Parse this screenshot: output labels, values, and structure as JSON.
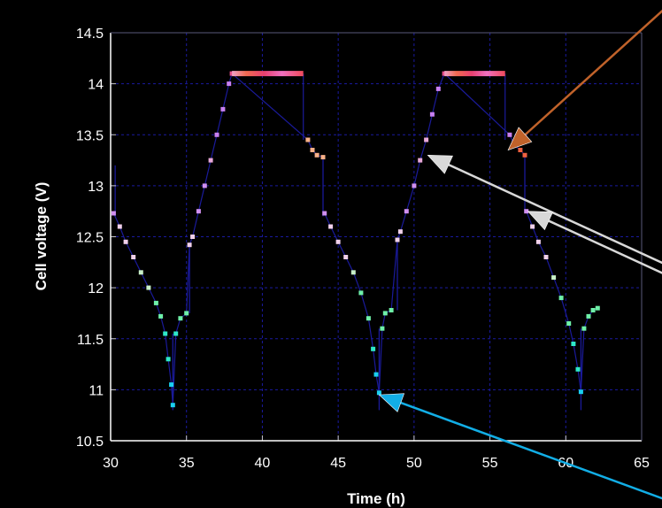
{
  "chart_data": {
    "type": "scatter",
    "xlabel": "Time (h)",
    "ylabel": "Cell voltage (V)",
    "xlim": [
      30,
      65
    ],
    "ylim": [
      10.5,
      14.5
    ],
    "x_ticks": [
      "30",
      "35",
      "40",
      "45",
      "50",
      "55",
      "60",
      "65"
    ],
    "y_ticks": [
      "10.5",
      "11",
      "11.5",
      "12",
      "12.5",
      "13",
      "13.5",
      "14",
      "14.5"
    ],
    "grid": true,
    "background": "#000000",
    "grid_color": "#1a1aa0",
    "trace_color": "#1a1a9a",
    "series": [
      {
        "segment": "cycle-1",
        "x": [
          30.2,
          30.6,
          31.0,
          31.5,
          32.0,
          32.5,
          33.0,
          33.3,
          33.6,
          33.8,
          34.0,
          34.1,
          34.3,
          34.6,
          35.0,
          35.2,
          35.4,
          35.8,
          36.2,
          36.6,
          37.0,
          37.4,
          37.8,
          38.0,
          43.0,
          43.3,
          43.6,
          44.0
        ],
        "y": [
          12.73,
          12.6,
          12.45,
          12.3,
          12.15,
          12.0,
          11.85,
          11.72,
          11.55,
          11.3,
          11.05,
          10.85,
          11.55,
          11.7,
          11.75,
          12.42,
          12.5,
          12.75,
          13.0,
          13.25,
          13.5,
          13.75,
          14.0,
          14.1,
          13.45,
          13.35,
          13.3,
          13.28
        ]
      },
      {
        "segment": "cycle-2",
        "x": [
          44.1,
          44.5,
          45.0,
          45.5,
          46.0,
          46.5,
          47.0,
          47.3,
          47.5,
          47.7,
          47.9,
          48.1,
          48.5,
          48.9,
          49.1,
          49.5,
          50.0,
          50.4,
          50.8,
          51.2,
          51.6,
          52.0,
          56.3,
          56.6,
          57.0,
          57.3
        ],
        "y": [
          12.73,
          12.6,
          12.45,
          12.3,
          12.15,
          11.95,
          11.7,
          11.4,
          11.15,
          10.97,
          11.6,
          11.75,
          11.78,
          12.47,
          12.55,
          12.75,
          13.0,
          13.25,
          13.45,
          13.7,
          13.95,
          14.1,
          13.5,
          13.4,
          13.35,
          13.3
        ]
      },
      {
        "segment": "cycle-3",
        "x": [
          57.4,
          57.8,
          58.2,
          58.7,
          59.2,
          59.7,
          60.2,
          60.5,
          60.8,
          61.0,
          61.2,
          61.5,
          61.8,
          62.1
        ],
        "y": [
          12.75,
          12.6,
          12.45,
          12.3,
          12.1,
          11.9,
          11.65,
          11.45,
          11.2,
          10.98,
          11.6,
          11.72,
          11.78,
          11.8
        ]
      }
    ],
    "annotations": [
      {
        "kind": "arrow",
        "color": "#c0622a",
        "from": [
          67,
          14.8
        ],
        "to": [
          56.2,
          13.35
        ]
      },
      {
        "kind": "arrow",
        "color": "#d8d8d8",
        "from": [
          67,
          12.2
        ],
        "to": [
          50.9,
          13.3
        ]
      },
      {
        "kind": "arrow",
        "color": "#d8d8d8",
        "from": [
          67,
          12.1
        ],
        "to": [
          57.5,
          12.75
        ]
      },
      {
        "kind": "arrow",
        "color": "#12aee6",
        "from": [
          67,
          9.9
        ],
        "to": [
          47.7,
          10.95
        ]
      }
    ]
  }
}
